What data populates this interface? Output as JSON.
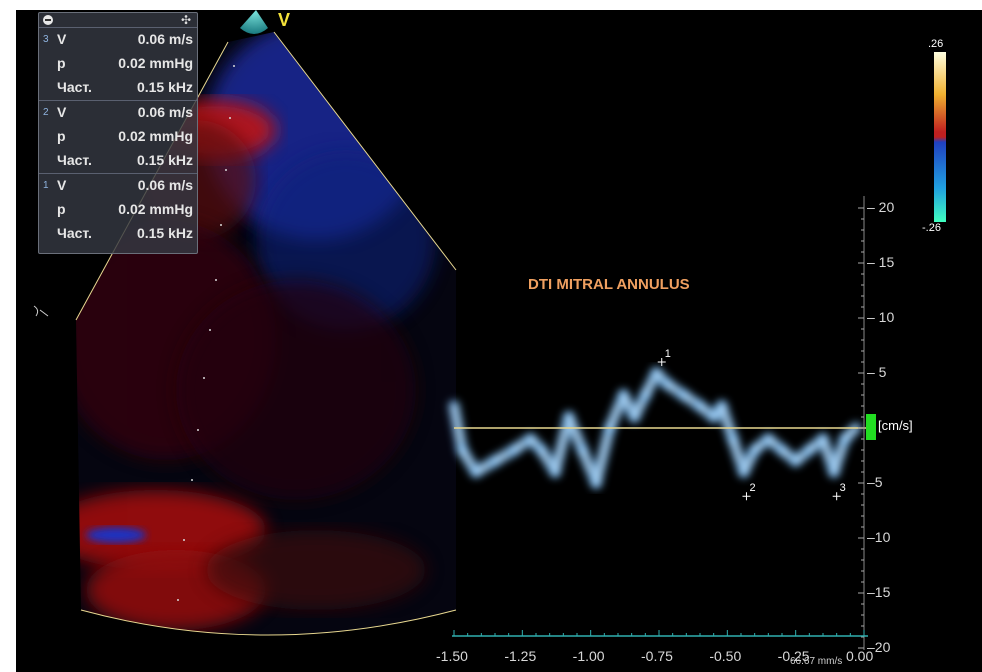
{
  "measurements": [
    {
      "index": "3",
      "v_label": "V",
      "v_value": "0.06 m/s",
      "p_label": "p",
      "p_value": "0.02 mmHg",
      "f_label": "Част.",
      "f_value": "0.15 kHz"
    },
    {
      "index": "2",
      "v_label": "V",
      "v_value": "0.06 m/s",
      "p_label": "p",
      "p_value": "0.02 mmHg",
      "f_label": "Част.",
      "f_value": "0.15 kHz"
    },
    {
      "index": "1",
      "v_label": "V",
      "v_value": "0.06 m/s",
      "p_label": "p",
      "p_value": "0.02 mmHg",
      "f_label": "Част.",
      "f_value": "0.15 kHz"
    }
  ],
  "apex_label": "V",
  "color_scale": {
    "max": ".26",
    "min": "-.26",
    "colors": [
      "#ffffe0",
      "#f0b030",
      "#c02020",
      "#2040c0",
      "#20a0e0",
      "#40ffc0"
    ]
  },
  "chart_data": {
    "type": "line",
    "title": "DTI MITRAL ANNULUS",
    "ylabel": "[cm/s]",
    "ylim": [
      -20,
      20
    ],
    "xlim": [
      -1.5,
      0
    ],
    "x_ticks": [
      "-1.50",
      "-1.25",
      "-1.00",
      "-0.75",
      "-0.50",
      "-0.25",
      "0.00"
    ],
    "y_ticks": [
      "20",
      "15",
      "10",
      "5",
      "-5",
      "-10",
      "-15",
      "-20"
    ],
    "baseline_y": 0,
    "markers": [
      {
        "label": "1",
        "x": -0.74,
        "y": 6
      },
      {
        "label": "2",
        "x": -0.43,
        "y": -6.2
      },
      {
        "label": "3",
        "x": -0.1,
        "y": -6.2
      }
    ],
    "sweep_speed": "66.67 mm/s"
  }
}
